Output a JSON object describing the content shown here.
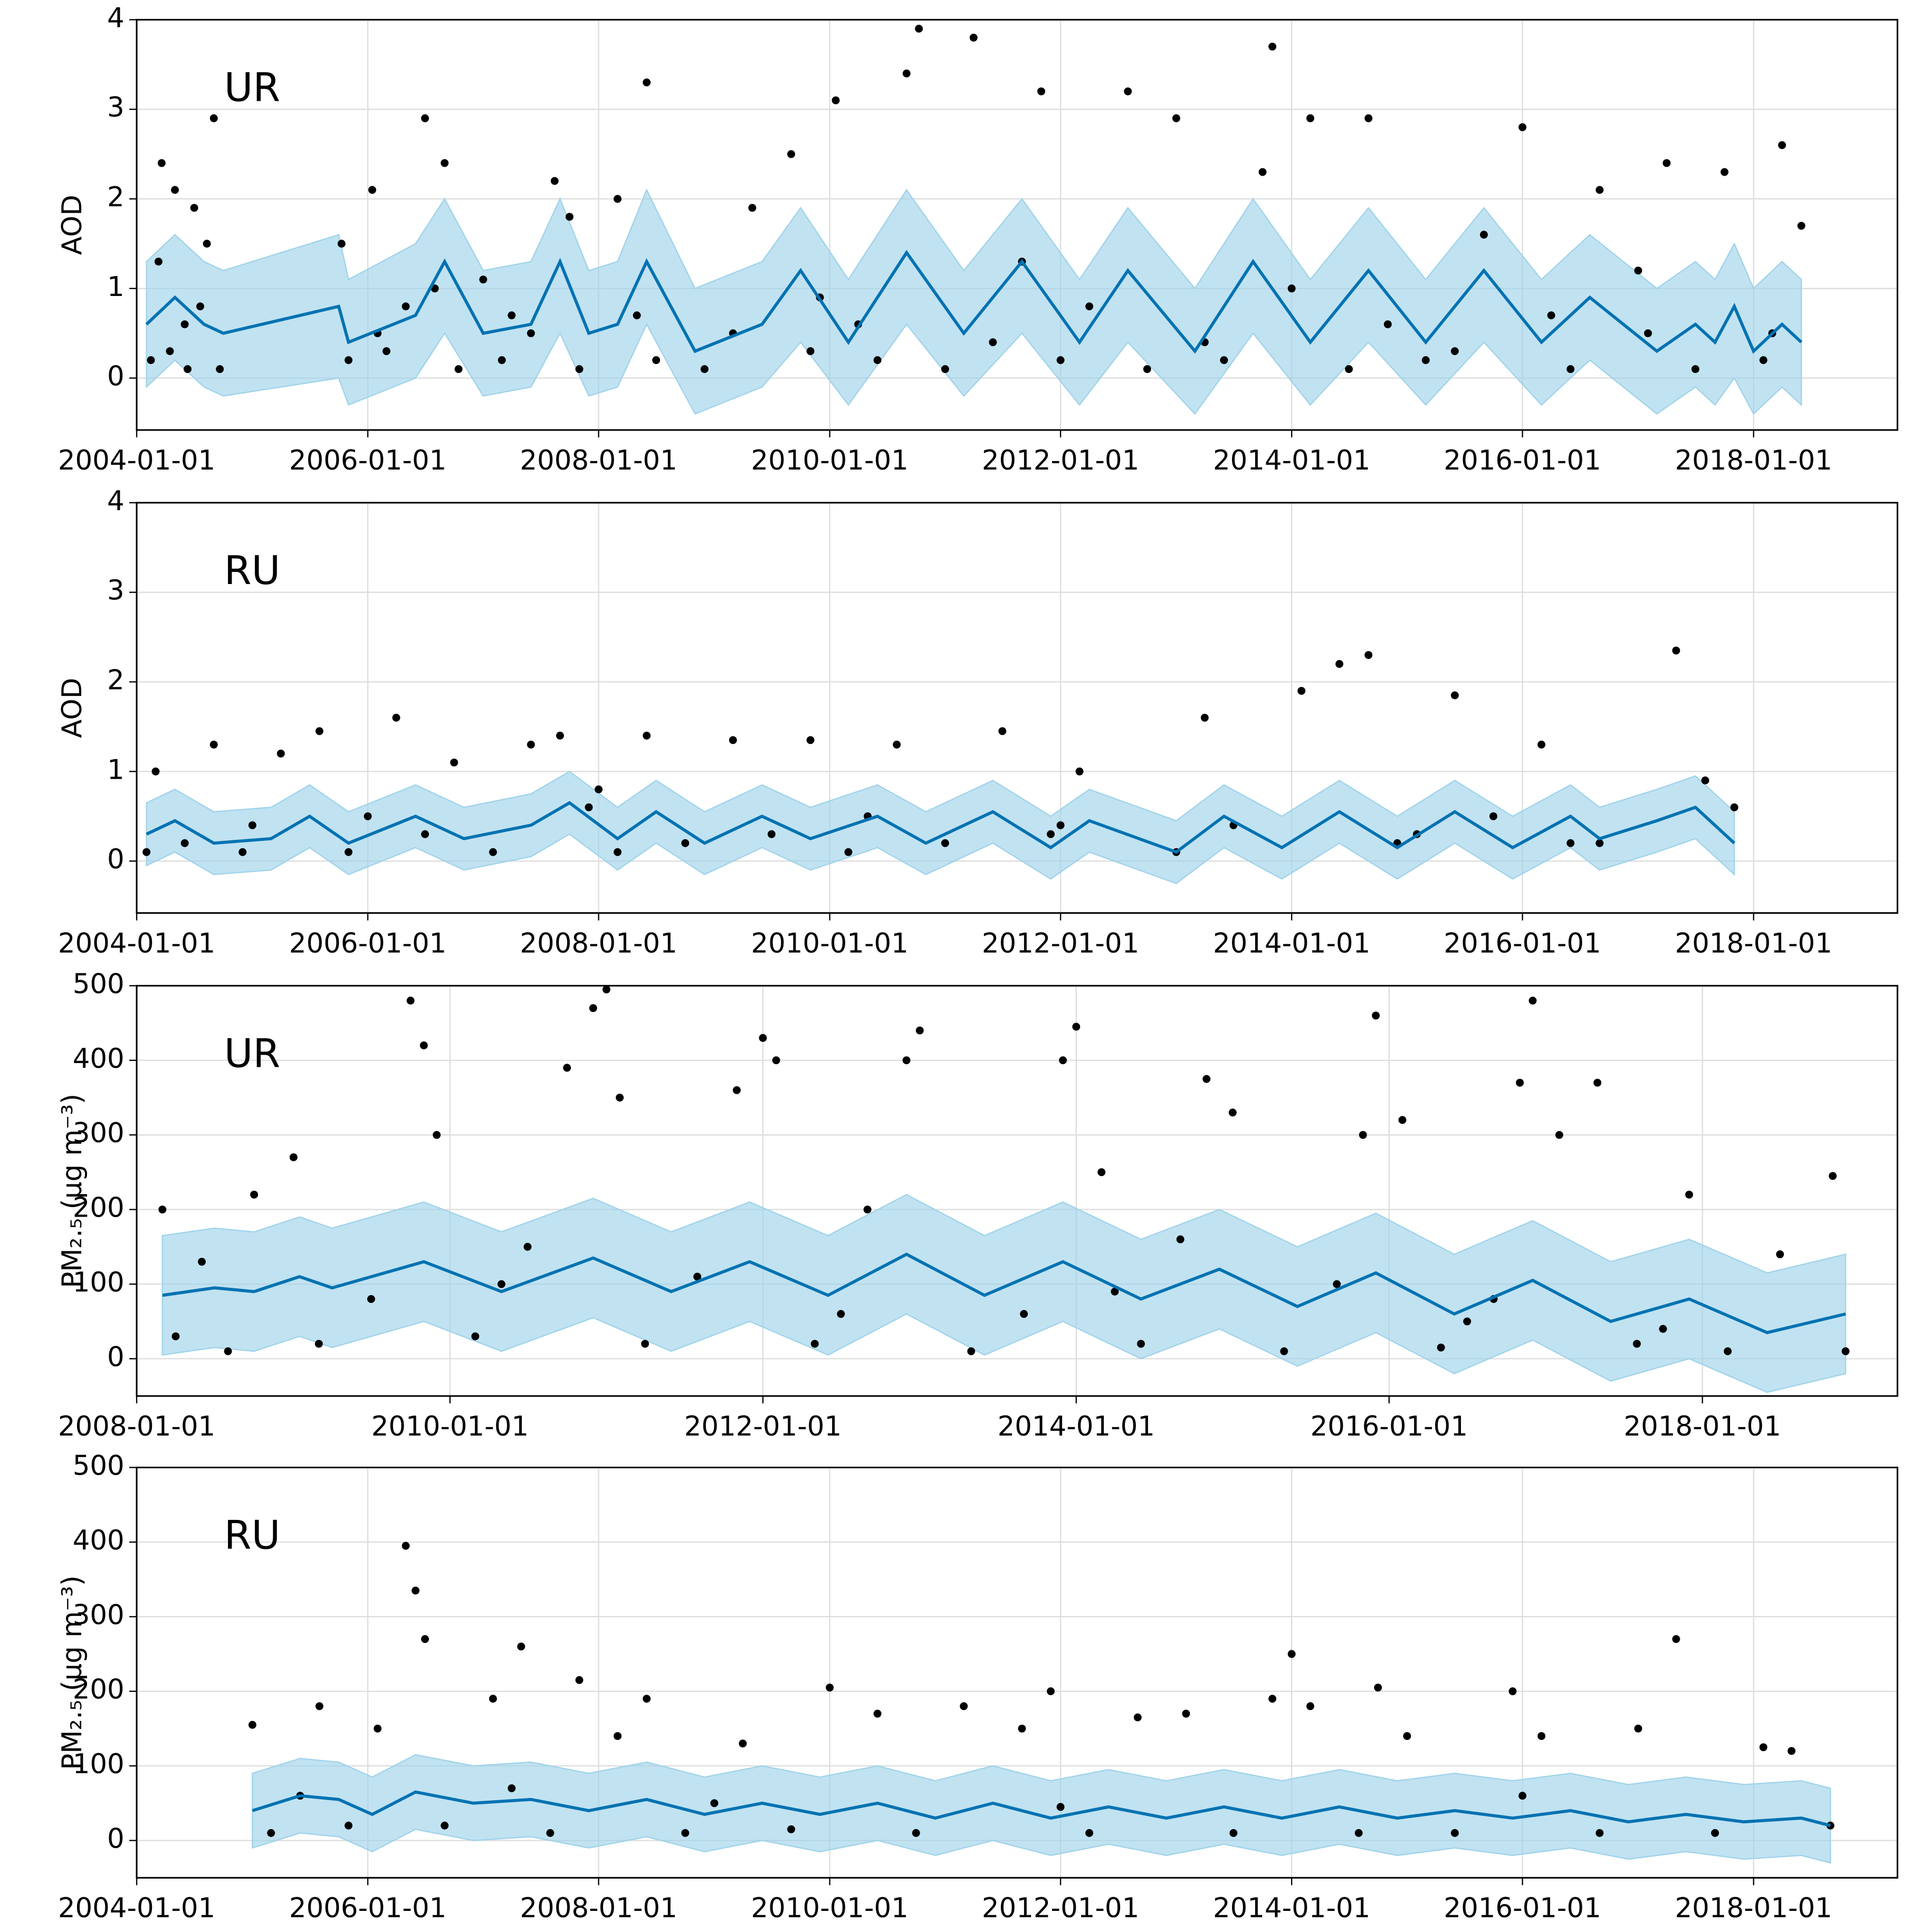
{
  "chart_data": [
    {
      "type": "scatter",
      "label": "UR",
      "ylabel": "AOD",
      "color": "#000000",
      "line_color": "#0072B2",
      "band_color": "#9fd3ea",
      "grid": true,
      "xlim": [
        "2004-01-01",
        "2019-04-01"
      ],
      "xticks": [
        "2004-01-01",
        "2006-01-01",
        "2008-01-01",
        "2010-01-01",
        "2012-01-01",
        "2014-01-01",
        "2016-01-01",
        "2018-01-01"
      ],
      "ylim": [
        -0.58,
        4
      ],
      "yticks": [
        0,
        1,
        2,
        3,
        4
      ],
      "x": [
        "2004-02-15",
        "2004-03-10",
        "2004-03-20",
        "2004-04-15",
        "2004-05-01",
        "2004-06-10",
        "2004-07-01",
        "2004-07-20",
        "2004-08-10",
        "2004-09-01",
        "2004-09-20",
        "2005-10-10",
        "2005-11-01",
        "2006-01-15",
        "2006-03-01",
        "2006-05-01",
        "2006-07-01",
        "2006-09-01",
        "2006-10-15",
        "2007-01-01",
        "2007-03-01",
        "2007-06-01",
        "2007-08-15",
        "2007-10-01",
        "2007-11-01",
        "2008-03-01",
        "2008-06-01",
        "2008-07-01",
        "2008-12-01",
        "2009-05-01",
        "2009-09-01",
        "2009-11-01",
        "2010-01-20",
        "2010-06-01",
        "2010-09-01",
        "2010-10-10",
        "2011-01-01",
        "2011-04-01",
        "2011-09-01",
        "2011-11-01",
        "2012-01-01",
        "2012-08-01",
        "2012-10-01",
        "2013-01-01",
        "2013-06-01",
        "2013-10-01",
        "2013-11-01",
        "2014-03-01",
        "2014-07-01",
        "2014-09-01",
        "2015-03-01",
        "2015-09-01",
        "2016-01-01",
        "2016-06-01",
        "2016-09-01",
        "2017-01-01",
        "2017-04-01",
        "2017-07-01",
        "2017-10-01",
        "2018-02-01",
        "2018-04-01",
        "2018-06-01",
        "2004-06-01",
        "2006-02-01",
        "2006-08-01",
        "2007-04-01",
        "2008-05-01",
        "2009-03-01",
        "2009-12-01",
        "2010-04-01",
        "2011-06-01",
        "2012-04-01",
        "2013-04-01",
        "2014-01-01",
        "2014-11-01",
        "2015-06-01",
        "2016-04-01",
        "2017-02-01",
        "2018-03-01"
      ],
      "values": [
        0.2,
        1.3,
        2.4,
        0.3,
        2.1,
        0.1,
        1.9,
        0.8,
        1.5,
        2.9,
        0.1,
        1.5,
        0.2,
        2.1,
        0.3,
        0.8,
        2.9,
        2.4,
        0.1,
        1.1,
        0.2,
        0.5,
        2.2,
        1.8,
        0.1,
        2.0,
        3.3,
        0.2,
        0.1,
        1.9,
        2.5,
        0.3,
        3.1,
        0.2,
        3.4,
        3.9,
        0.1,
        3.8,
        1.3,
        3.2,
        0.2,
        3.2,
        0.1,
        2.9,
        0.2,
        2.3,
        3.7,
        2.9,
        0.1,
        2.9,
        0.2,
        1.6,
        2.8,
        0.1,
        2.1,
        1.2,
        2.4,
        0.1,
        2.3,
        0.2,
        2.6,
        1.7,
        0.6,
        0.5,
        1.0,
        0.7,
        0.7,
        0.5,
        0.9,
        0.6,
        0.4,
        0.8,
        0.4,
        1.0,
        0.6,
        0.3,
        0.7,
        0.5,
        0.5
      ],
      "forecast": {
        "x": [
          "2004-02-01",
          "2004-05-01",
          "2004-08-01",
          "2004-10-01",
          "2005-10-01",
          "2005-11-01",
          "2006-06-01",
          "2006-09-01",
          "2007-01-01",
          "2007-06-01",
          "2007-09-01",
          "2007-12-01",
          "2008-03-01",
          "2008-06-01",
          "2008-11-01",
          "2009-06-01",
          "2009-10-01",
          "2010-03-01",
          "2010-09-01",
          "2011-03-01",
          "2011-09-01",
          "2012-03-01",
          "2012-08-01",
          "2013-03-01",
          "2013-09-01",
          "2014-03-01",
          "2014-09-01",
          "2015-03-01",
          "2015-09-01",
          "2016-03-01",
          "2016-08-01",
          "2017-03-01",
          "2017-07-01",
          "2017-09-01",
          "2017-11-01",
          "2018-01-01",
          "2018-04-01",
          "2018-06-01"
        ],
        "values": [
          0.6,
          0.9,
          0.6,
          0.5,
          0.8,
          0.4,
          0.7,
          1.3,
          0.5,
          0.6,
          1.3,
          0.5,
          0.6,
          1.3,
          0.3,
          0.6,
          1.2,
          0.4,
          1.4,
          0.5,
          1.3,
          0.4,
          1.2,
          0.3,
          1.3,
          0.4,
          1.2,
          0.4,
          1.2,
          0.4,
          0.9,
          0.3,
          0.6,
          0.4,
          0.8,
          0.3,
          0.6,
          0.4
        ],
        "lower": [
          -0.1,
          0.2,
          -0.1,
          -0.2,
          0.0,
          -0.3,
          0.0,
          0.5,
          -0.2,
          -0.1,
          0.5,
          -0.2,
          -0.1,
          0.6,
          -0.4,
          -0.1,
          0.4,
          -0.3,
          0.6,
          -0.2,
          0.5,
          -0.3,
          0.4,
          -0.4,
          0.5,
          -0.3,
          0.4,
          -0.3,
          0.4,
          -0.3,
          0.2,
          -0.4,
          -0.1,
          -0.3,
          0.0,
          -0.4,
          -0.1,
          -0.3
        ],
        "upper": [
          1.3,
          1.6,
          1.3,
          1.2,
          1.6,
          1.1,
          1.5,
          2.0,
          1.2,
          1.3,
          2.0,
          1.2,
          1.3,
          2.1,
          1.0,
          1.3,
          1.9,
          1.1,
          2.1,
          1.2,
          2.0,
          1.1,
          1.9,
          1.0,
          2.0,
          1.1,
          1.9,
          1.1,
          1.9,
          1.1,
          1.6,
          1.0,
          1.3,
          1.1,
          1.5,
          1.0,
          1.3,
          1.1
        ]
      }
    },
    {
      "type": "scatter",
      "label": "RU",
      "ylabel": "AOD",
      "color": "#000000",
      "line_color": "#0072B2",
      "band_color": "#9fd3ea",
      "grid": true,
      "xlim": [
        "2004-01-01",
        "2019-04-01"
      ],
      "xticks": [
        "2004-01-01",
        "2006-01-01",
        "2008-01-01",
        "2010-01-01",
        "2012-01-01",
        "2014-01-01",
        "2016-01-01",
        "2018-01-01"
      ],
      "ylim": [
        -0.58,
        4
      ],
      "yticks": [
        0,
        1,
        2,
        3,
        4
      ],
      "x": [
        "2004-02-01",
        "2004-03-01",
        "2004-06-01",
        "2004-09-01",
        "2004-12-01",
        "2005-04-01",
        "2005-08-01",
        "2005-11-01",
        "2006-04-01",
        "2006-07-01",
        "2006-10-01",
        "2007-02-01",
        "2007-06-01",
        "2007-09-01",
        "2007-12-01",
        "2008-03-01",
        "2008-06-01",
        "2008-10-01",
        "2009-03-01",
        "2009-07-01",
        "2009-11-01",
        "2010-03-01",
        "2010-08-01",
        "2011-01-01",
        "2011-07-01",
        "2011-12-01",
        "2012-03-01",
        "2013-01-01",
        "2013-04-01",
        "2013-07-01",
        "2014-02-01",
        "2014-06-01",
        "2014-09-01",
        "2014-12-01",
        "2015-06-01",
        "2015-10-01",
        "2016-03-01",
        "2016-06-01",
        "2016-09-01",
        "2017-05-01",
        "2017-08-01",
        "2017-11-01",
        "2005-01-01",
        "2006-01-01",
        "2008-01-01",
        "2010-05-01",
        "2012-01-01",
        "2015-02-01"
      ],
      "values": [
        0.1,
        1.0,
        0.2,
        1.3,
        0.1,
        1.2,
        1.45,
        0.1,
        1.6,
        0.3,
        1.1,
        0.1,
        1.3,
        1.4,
        0.6,
        0.1,
        1.4,
        0.2,
        1.35,
        0.3,
        1.35,
        0.1,
        1.3,
        0.2,
        1.45,
        0.3,
        1.0,
        0.1,
        1.6,
        0.4,
        1.9,
        2.2,
        2.3,
        0.2,
        1.85,
        0.5,
        1.3,
        0.2,
        0.2,
        2.35,
        0.9,
        0.6,
        0.4,
        0.5,
        0.8,
        0.5,
        0.4,
        0.3
      ],
      "forecast": {
        "x": [
          "2004-02-01",
          "2004-05-01",
          "2004-09-01",
          "2005-03-01",
          "2005-07-01",
          "2005-11-01",
          "2006-06-01",
          "2006-11-01",
          "2007-06-01",
          "2007-10-01",
          "2008-03-01",
          "2008-07-01",
          "2008-12-01",
          "2009-06-01",
          "2009-11-01",
          "2010-06-01",
          "2010-11-01",
          "2011-06-01",
          "2011-12-01",
          "2012-04-01",
          "2013-01-01",
          "2013-06-01",
          "2013-12-01",
          "2014-06-01",
          "2014-12-01",
          "2015-06-01",
          "2015-12-01",
          "2016-06-01",
          "2016-09-01",
          "2017-03-01",
          "2017-07-01",
          "2017-11-01"
        ],
        "values": [
          0.3,
          0.45,
          0.2,
          0.25,
          0.5,
          0.2,
          0.5,
          0.25,
          0.4,
          0.65,
          0.25,
          0.55,
          0.2,
          0.5,
          0.25,
          0.5,
          0.2,
          0.55,
          0.15,
          0.45,
          0.1,
          0.5,
          0.15,
          0.55,
          0.15,
          0.55,
          0.15,
          0.5,
          0.25,
          0.45,
          0.6,
          0.2
        ],
        "lower": [
          -0.05,
          0.1,
          -0.15,
          -0.1,
          0.15,
          -0.15,
          0.15,
          -0.1,
          0.05,
          0.3,
          -0.1,
          0.2,
          -0.15,
          0.15,
          -0.1,
          0.15,
          -0.15,
          0.2,
          -0.2,
          0.1,
          -0.25,
          0.15,
          -0.2,
          0.2,
          -0.2,
          0.2,
          -0.2,
          0.15,
          -0.1,
          0.1,
          0.25,
          -0.15
        ],
        "upper": [
          0.65,
          0.8,
          0.55,
          0.6,
          0.85,
          0.55,
          0.85,
          0.6,
          0.75,
          1.0,
          0.6,
          0.9,
          0.55,
          0.85,
          0.6,
          0.85,
          0.55,
          0.9,
          0.5,
          0.8,
          0.45,
          0.85,
          0.5,
          0.9,
          0.5,
          0.9,
          0.5,
          0.85,
          0.6,
          0.8,
          0.95,
          0.55
        ]
      }
    },
    {
      "type": "scatter",
      "label": "UR",
      "ylabel": "PM₂.₅ (μg m⁻³)",
      "color": "#000000",
      "line_color": "#0072B2",
      "band_color": "#9fd3ea",
      "grid": true,
      "xlim": [
        "2008-01-01",
        "2019-04-01"
      ],
      "xticks": [
        "2008-01-01",
        "2010-01-01",
        "2012-01-01",
        "2014-01-01",
        "2016-01-01",
        "2018-01-01"
      ],
      "ylim": [
        -50,
        500
      ],
      "yticks": [
        0,
        100,
        200,
        300,
        400,
        500
      ],
      "x": [
        "2008-03-01",
        "2008-04-01",
        "2008-06-01",
        "2008-08-01",
        "2008-10-01",
        "2009-01-01",
        "2009-03-01",
        "2009-07-01",
        "2009-10-01",
        "2009-11-01",
        "2009-12-01",
        "2010-03-01",
        "2010-07-01",
        "2010-10-01",
        "2010-12-01",
        "2011-01-01",
        "2011-02-01",
        "2011-04-01",
        "2011-08-01",
        "2011-11-01",
        "2012-01-01",
        "2012-02-01",
        "2012-05-01",
        "2012-09-01",
        "2012-12-01",
        "2013-01-01",
        "2013-05-01",
        "2013-09-01",
        "2013-12-01",
        "2014-01-01",
        "2014-03-01",
        "2014-06-01",
        "2014-09-01",
        "2014-11-01",
        "2015-01-01",
        "2015-05-01",
        "2015-09-01",
        "2015-11-01",
        "2015-12-01",
        "2016-02-01",
        "2016-05-01",
        "2016-09-01",
        "2016-11-01",
        "2016-12-01",
        "2017-02-01",
        "2017-05-01",
        "2017-08-01",
        "2017-12-01",
        "2018-03-01",
        "2018-07-01",
        "2018-11-01",
        "2018-12-01",
        "2010-05-01",
        "2012-07-01",
        "2014-04-01",
        "2016-07-01",
        "2017-10-01"
      ],
      "values": [
        200,
        30,
        130,
        10,
        220,
        270,
        20,
        80,
        480,
        420,
        300,
        30,
        150,
        390,
        470,
        495,
        350,
        20,
        110,
        360,
        430,
        400,
        20,
        200,
        400,
        440,
        10,
        60,
        400,
        445,
        250,
        20,
        160,
        375,
        330,
        10,
        100,
        300,
        460,
        320,
        15,
        80,
        370,
        480,
        300,
        370,
        20,
        220,
        10,
        140,
        245,
        10,
        100,
        60,
        90,
        50,
        40
      ],
      "forecast": {
        "x": [
          "2008-03-01",
          "2008-07-01",
          "2008-10-01",
          "2009-01-15",
          "2009-04-01",
          "2009-11-01",
          "2010-05-01",
          "2010-12-01",
          "2011-06-01",
          "2011-12-01",
          "2012-06-01",
          "2012-12-01",
          "2013-06-01",
          "2013-12-01",
          "2014-06-01",
          "2014-12-01",
          "2015-06-01",
          "2015-12-01",
          "2016-06-01",
          "2016-12-01",
          "2017-06-01",
          "2017-12-01",
          "2018-06-01",
          "2018-12-01"
        ],
        "values": [
          85,
          95,
          90,
          110,
          95,
          130,
          90,
          135,
          90,
          130,
          85,
          140,
          85,
          130,
          80,
          120,
          70,
          115,
          60,
          105,
          50,
          80,
          35,
          60
        ],
        "lower": [
          5,
          15,
          10,
          30,
          15,
          50,
          10,
          55,
          10,
          50,
          5,
          60,
          5,
          50,
          0,
          40,
          -10,
          35,
          -20,
          25,
          -30,
          0,
          -45,
          -20
        ],
        "upper": [
          165,
          175,
          170,
          190,
          175,
          210,
          170,
          215,
          170,
          210,
          165,
          220,
          165,
          210,
          160,
          200,
          150,
          195,
          140,
          185,
          130,
          160,
          115,
          140
        ]
      }
    },
    {
      "type": "scatter",
      "label": "RU",
      "ylabel": "PM₂.₅ (μg m⁻³)",
      "color": "#000000",
      "line_color": "#0072B2",
      "band_color": "#9fd3ea",
      "grid": true,
      "xlim": [
        "2004-01-01",
        "2019-04-01"
      ],
      "xticks": [
        "2004-01-01",
        "2006-01-01",
        "2008-01-01",
        "2010-01-01",
        "2012-01-01",
        "2014-01-01",
        "2016-01-01",
        "2018-01-01"
      ],
      "ylim": [
        -50,
        500
      ],
      "yticks": [
        0,
        100,
        200,
        300,
        400,
        500
      ],
      "x": [
        "2005-01-01",
        "2005-03-01",
        "2005-08-01",
        "2005-11-01",
        "2006-02-01",
        "2006-05-01",
        "2006-06-01",
        "2006-07-01",
        "2006-09-01",
        "2007-02-01",
        "2007-05-01",
        "2007-08-01",
        "2007-11-01",
        "2008-03-01",
        "2008-06-01",
        "2008-10-01",
        "2009-04-01",
        "2009-09-01",
        "2010-01-01",
        "2010-06-01",
        "2010-10-01",
        "2011-03-01",
        "2011-09-01",
        "2011-12-01",
        "2012-04-01",
        "2012-09-01",
        "2013-02-01",
        "2013-07-01",
        "2013-11-01",
        "2014-01-01",
        "2014-03-01",
        "2014-08-01",
        "2014-10-01",
        "2015-01-01",
        "2015-06-01",
        "2015-12-01",
        "2016-03-01",
        "2016-09-01",
        "2017-01-01",
        "2017-05-01",
        "2017-09-01",
        "2018-02-01",
        "2018-05-01",
        "2018-09-01",
        "2005-06-01",
        "2007-04-01",
        "2009-01-01",
        "2012-01-01",
        "2016-01-01"
      ],
      "values": [
        155,
        10,
        180,
        20,
        150,
        395,
        335,
        270,
        20,
        190,
        260,
        10,
        215,
        140,
        190,
        10,
        130,
        15,
        205,
        170,
        10,
        180,
        150,
        200,
        10,
        165,
        170,
        10,
        190,
        250,
        180,
        10,
        205,
        140,
        10,
        200,
        140,
        10,
        150,
        270,
        10,
        125,
        120,
        20,
        60,
        70,
        50,
        45,
        60
      ],
      "forecast": {
        "x": [
          "2005-01-01",
          "2005-06-01",
          "2005-10-01",
          "2006-01-15",
          "2006-06-01",
          "2006-12-01",
          "2007-06-01",
          "2007-12-01",
          "2008-06-01",
          "2008-12-01",
          "2009-06-01",
          "2009-12-01",
          "2010-06-01",
          "2010-12-01",
          "2011-06-01",
          "2011-12-01",
          "2012-06-01",
          "2012-12-01",
          "2013-06-01",
          "2013-12-01",
          "2014-06-01",
          "2014-12-01",
          "2015-06-01",
          "2015-12-01",
          "2016-06-01",
          "2016-12-01",
          "2017-06-01",
          "2017-12-01",
          "2018-06-01",
          "2018-09-01"
        ],
        "values": [
          40,
          60,
          55,
          35,
          65,
          50,
          55,
          40,
          55,
          35,
          50,
          35,
          50,
          30,
          50,
          30,
          45,
          30,
          45,
          30,
          45,
          30,
          40,
          30,
          40,
          25,
          35,
          25,
          30,
          20
        ],
        "lower": [
          -10,
          10,
          5,
          -15,
          15,
          0,
          5,
          -10,
          5,
          -15,
          0,
          -15,
          0,
          -20,
          0,
          -20,
          -5,
          -20,
          -5,
          -20,
          -5,
          -20,
          -10,
          -20,
          -10,
          -25,
          -15,
          -25,
          -20,
          -30
        ],
        "upper": [
          90,
          110,
          105,
          85,
          115,
          100,
          105,
          90,
          105,
          85,
          100,
          85,
          100,
          80,
          100,
          80,
          95,
          80,
          95,
          80,
          95,
          80,
          90,
          80,
          90,
          75,
          85,
          75,
          80,
          70
        ]
      }
    }
  ]
}
